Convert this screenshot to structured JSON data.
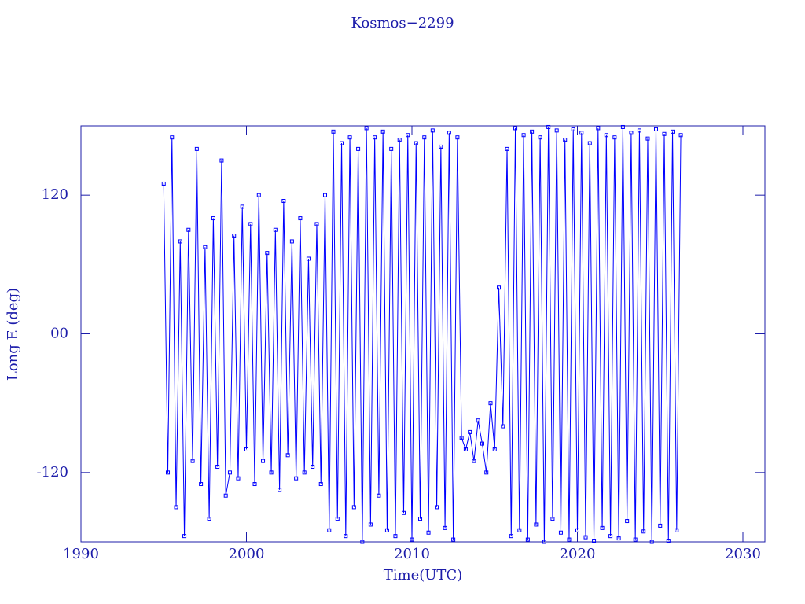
{
  "chart_data": {
    "type": "line",
    "title": "Kosmos−2299",
    "x_label": "Time(UTC)",
    "y_label": "Long E (deg)",
    "color": "#0000ff",
    "xlim": [
      1990,
      2031.33
    ],
    "xticks": [
      1990,
      2000,
      2010,
      2020,
      2030
    ],
    "ylim": [
      -180,
      180
    ],
    "yticks": [
      -120,
      {
        "value": 0,
        "label": "00"
      },
      120
    ],
    "x": [
      1995,
      1995.25,
      1995.5,
      1995.75,
      1996,
      1996.25,
      1996.5,
      1996.75,
      1997,
      1997.25,
      1997.5,
      1997.75,
      1998,
      1998.25,
      1998.5,
      1998.75,
      1999,
      1999.25,
      1999.5,
      1999.75,
      2000,
      2000.25,
      2000.5,
      2000.75,
      2001,
      2001.25,
      2001.5,
      2001.75,
      2002,
      2002.25,
      2002.5,
      2002.75,
      2003,
      2003.25,
      2003.5,
      2003.75,
      2004,
      2004.25,
      2004.5,
      2004.75,
      2005,
      2005.25,
      2005.5,
      2005.75,
      2006,
      2006.25,
      2006.5,
      2006.75,
      2007,
      2007.25,
      2007.5,
      2007.75,
      2008,
      2008.25,
      2008.5,
      2008.75,
      2009,
      2009.25,
      2009.5,
      2009.75,
      2010,
      2010.25,
      2010.5,
      2010.75,
      2011,
      2011.25,
      2011.5,
      2011.75,
      2012,
      2012.25,
      2012.5,
      2012.75,
      2013,
      2013.25,
      2013.5,
      2013.75,
      2014,
      2014.25,
      2014.5,
      2014.75,
      2015,
      2015.25,
      2015.5,
      2015.75,
      2016,
      2016.25,
      2016.5,
      2016.75,
      2017,
      2017.25,
      2017.5,
      2017.75,
      2018,
      2018.25,
      2018.5,
      2018.75,
      2019,
      2019.25,
      2019.5,
      2019.75,
      2020,
      2020.25,
      2020.5,
      2020.75,
      2021,
      2021.25,
      2021.5,
      2021.75,
      2022,
      2022.25,
      2022.5,
      2022.75,
      2023,
      2023.25,
      2023.5,
      2023.75,
      2024,
      2024.25,
      2024.5,
      2024.75,
      2025,
      2025.25,
      2025.5,
      2025.75,
      2026,
      2026.25
    ],
    "values": [
      130,
      -120,
      170,
      -150,
      80,
      -175,
      90,
      -110,
      160,
      -130,
      75,
      -160,
      100,
      -115,
      150,
      -140,
      -120,
      85,
      -125,
      110,
      -100,
      95,
      -130,
      120,
      -110,
      70,
      -120,
      90,
      -135,
      115,
      -105,
      80,
      -125,
      100,
      -120,
      65,
      -115,
      95,
      -130,
      120,
      -170,
      175,
      -160,
      165,
      -175,
      170,
      -150,
      160,
      -180,
      178,
      -165,
      170,
      -140,
      175,
      -170,
      160,
      -175,
      168,
      -155,
      172,
      -178,
      165,
      -160,
      170,
      -172,
      176,
      -150,
      162,
      -168,
      174,
      -178,
      170,
      -90,
      -100,
      -85,
      -110,
      -75,
      -95,
      -120,
      -60,
      -100,
      40,
      -80,
      160,
      -175,
      178,
      -170,
      172,
      -178,
      175,
      -165,
      170,
      -180,
      179,
      -160,
      176,
      -172,
      168,
      -178,
      177,
      -170,
      174,
      -176,
      165,
      -179,
      178,
      -168,
      172,
      -175,
      170,
      -177,
      179,
      -162,
      174,
      -178,
      176,
      -171,
      169,
      -180,
      177,
      -166,
      173,
      -179,
      175,
      -170,
      172
    ]
  }
}
